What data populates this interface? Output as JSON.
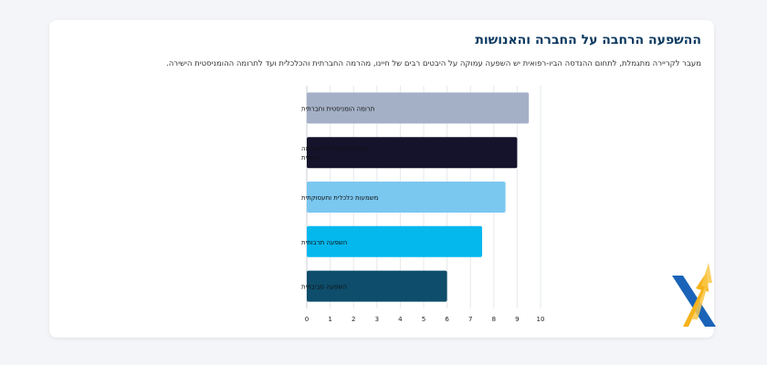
{
  "header": {
    "title": "ההשפעה הרחבה על החברה והאנושות",
    "description": "מעבר לקריירה מתגמלת, לתחום ההנדסה הביו-רפואית יש השפעה עמוקה על היבטים רבים של חיינו, מהרמה החברתית והכלכלית ועד לתרומה ההומניסטית הישירה."
  },
  "chart_data": {
    "type": "bar",
    "orientation": "horizontal",
    "categories": [
      "תרומה הומניסטית וחברתית",
      "קידמה טכנולוגית ועוצמה לאומית",
      "משמעות כלכלית ותעסוקתית",
      "השפעה תרבותית",
      "השפעה סביבתית"
    ],
    "category_lines": [
      [
        "תרומה הומניסטית וחברתית"
      ],
      [
        "קידמה טכנולוגית ועוצמה",
        "לאומית"
      ],
      [
        "משמעות כלכלית ותעסוקתית"
      ],
      [
        "השפעה תרבותית"
      ],
      [
        "השפעה סביבתית"
      ]
    ],
    "values": [
      9.5,
      9.0,
      8.5,
      7.5,
      6.0
    ],
    "colors": [
      "#a4b0c6",
      "#15122b",
      "#7ac7f0",
      "#04b8ee",
      "#0e4d6b"
    ],
    "xlim": [
      0,
      10
    ],
    "xticks": [
      "0",
      "1",
      "2",
      "3",
      "4",
      "5",
      "6",
      "7",
      "8",
      "9",
      "10"
    ],
    "grid": true,
    "legend": false
  },
  "logo": {
    "colors": [
      "#1a63b8",
      "#f6b21a"
    ]
  }
}
